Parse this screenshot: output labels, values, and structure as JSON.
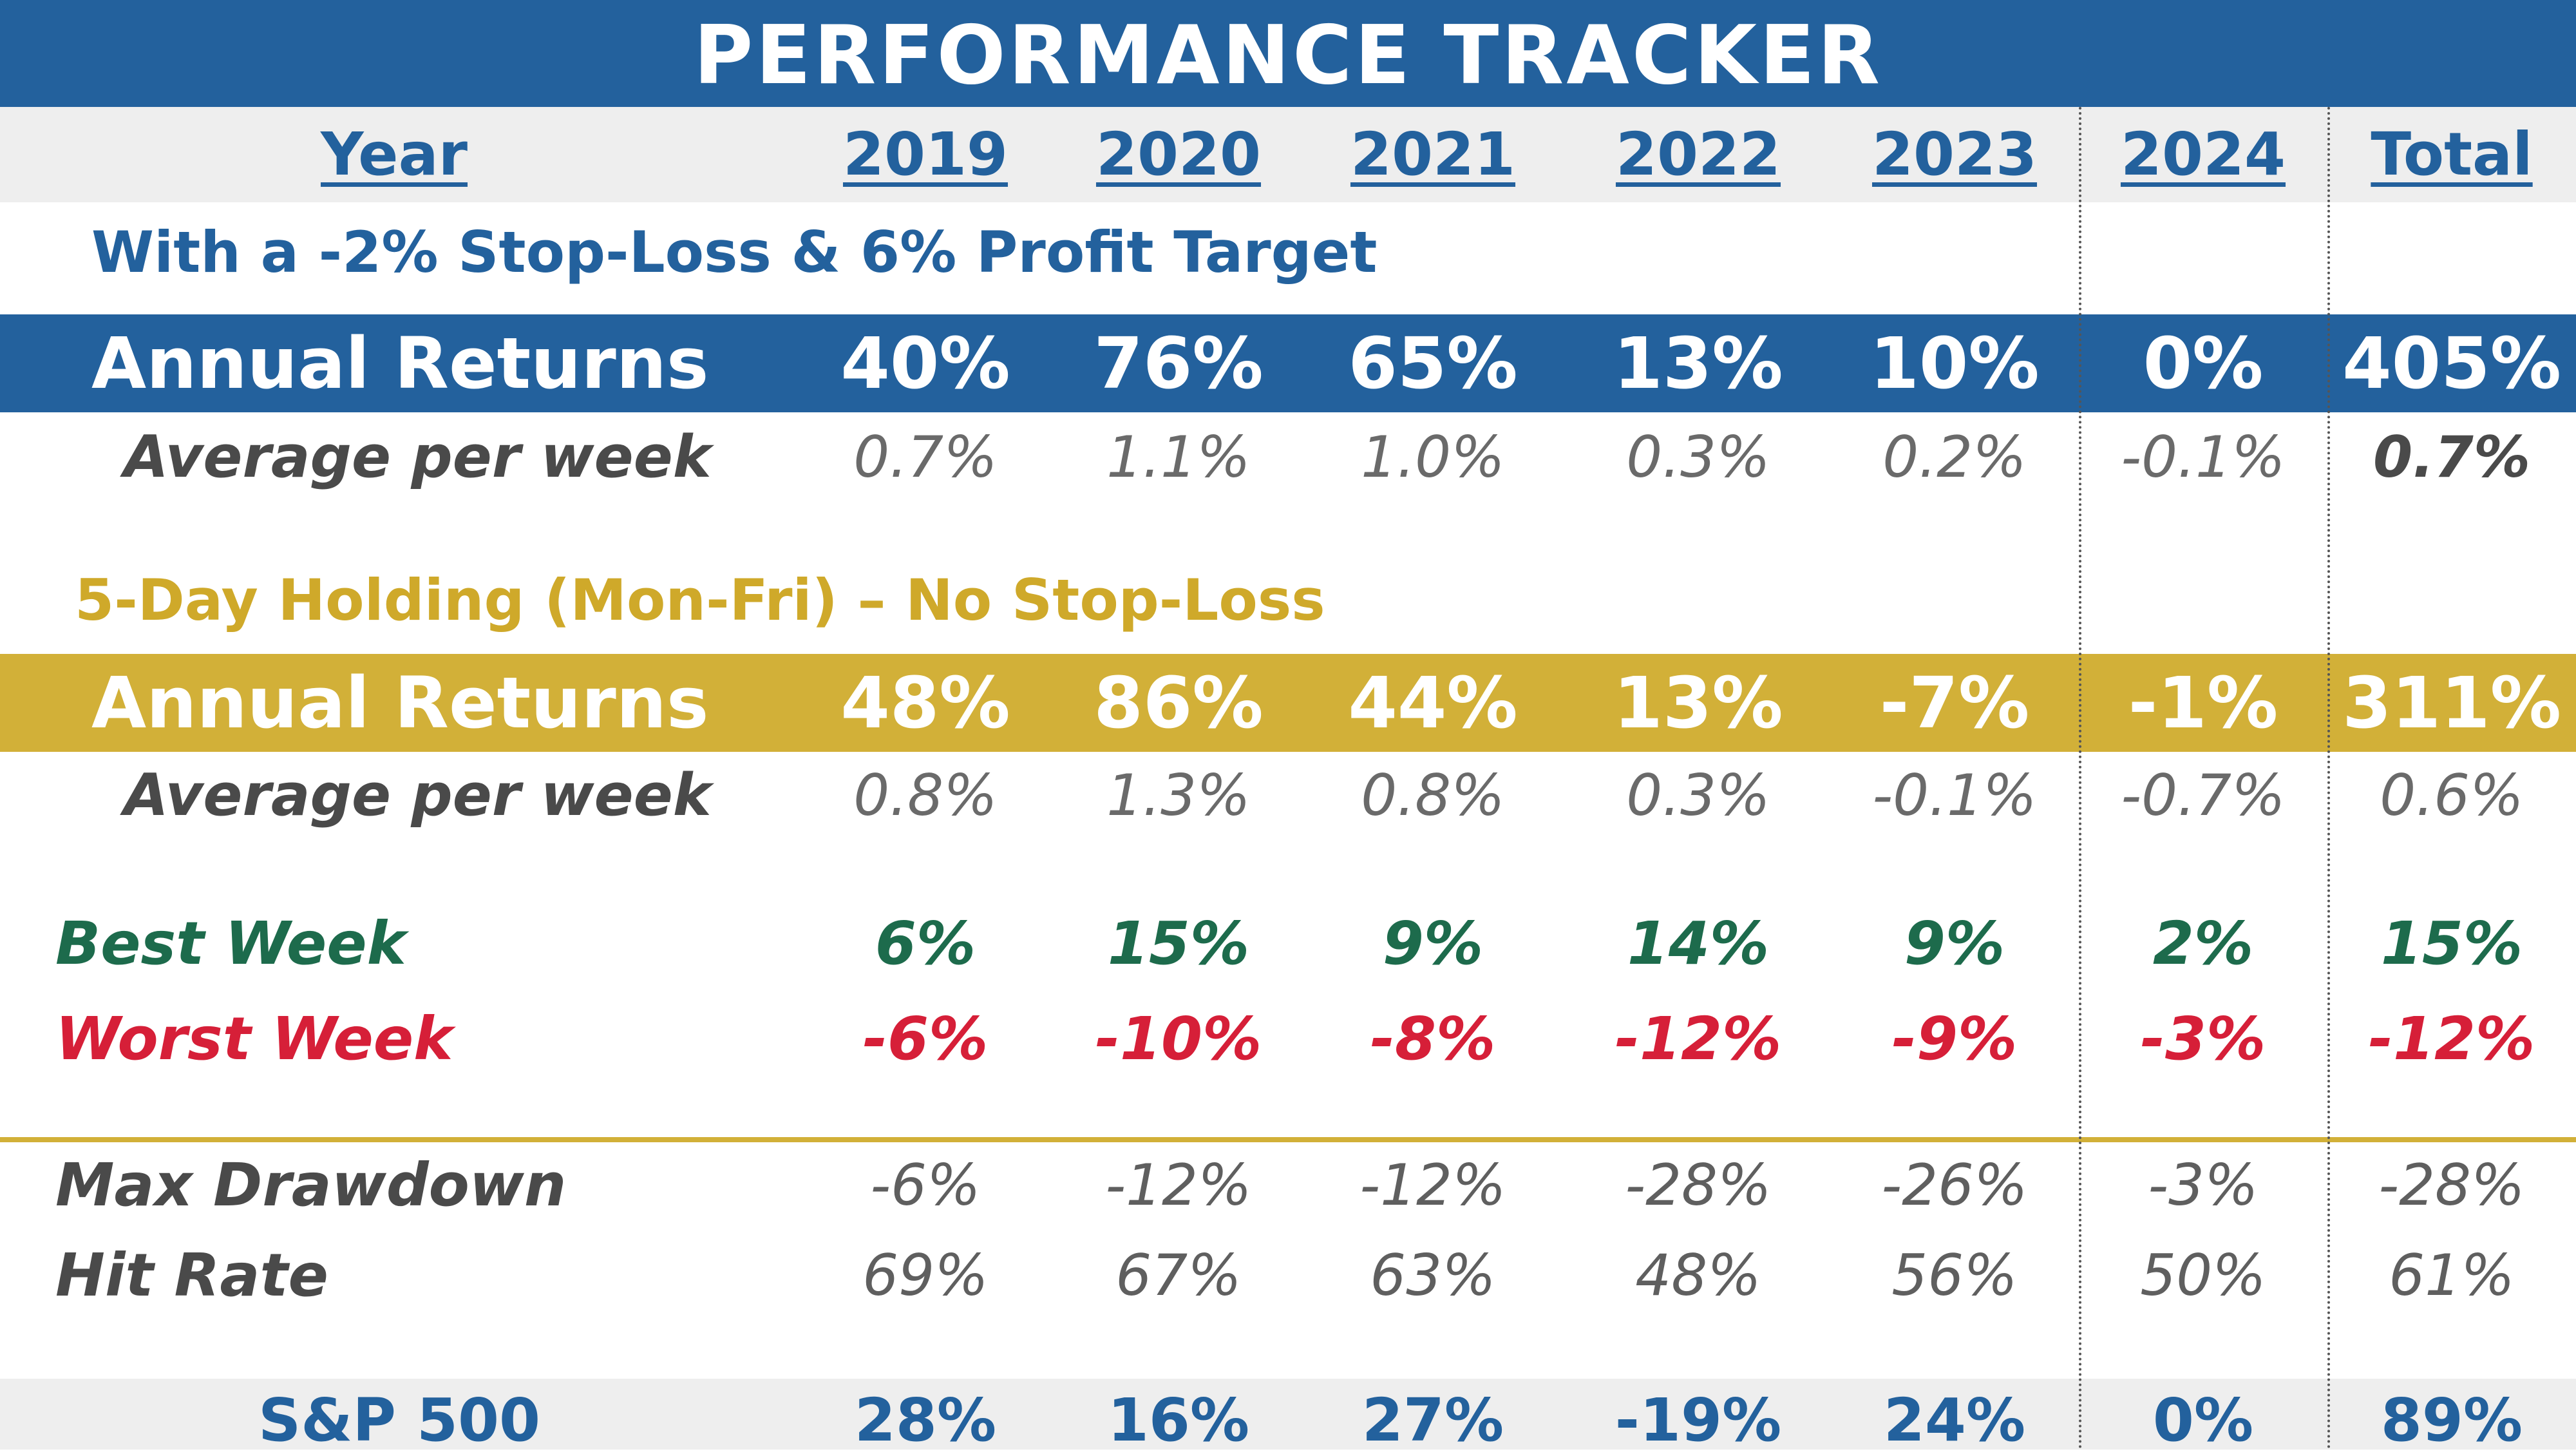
{
  "title": "PERFORMANCE TRACKER",
  "header": {
    "label": "Year",
    "columns": [
      "2019",
      "2020",
      "2021",
      "2022",
      "2023",
      "2024",
      "Total"
    ]
  },
  "section_stop_loss": {
    "title": "With a -2% Stop-Loss & 6% Profit Target",
    "annual_label": "Annual Returns",
    "annual_values": [
      "40%",
      "76%",
      "65%",
      "13%",
      "10%",
      "0%",
      "405%"
    ],
    "avg_label": "Average per week",
    "avg_values": [
      "0.7%",
      "1.1%",
      "1.0%",
      "0.3%",
      "0.2%",
      "-0.1%",
      "0.7%"
    ]
  },
  "section_holding": {
    "title": "5-Day Holding (Mon-Fri) – No Stop-Loss",
    "annual_label": "Annual Returns",
    "annual_values": [
      "48%",
      "86%",
      "44%",
      "13%",
      "-7%",
      "-1%",
      "311%"
    ],
    "avg_label": "Average per week",
    "avg_values": [
      "0.8%",
      "1.3%",
      "0.8%",
      "0.3%",
      "-0.1%",
      "-0.7%",
      "0.6%"
    ]
  },
  "best_week": {
    "label": "Best Week",
    "values": [
      "6%",
      "15%",
      "9%",
      "14%",
      "9%",
      "2%",
      "15%"
    ]
  },
  "worst_week": {
    "label": "Worst Week",
    "values": [
      "-6%",
      "-10%",
      "-8%",
      "-12%",
      "-9%",
      "-3%",
      "-12%"
    ]
  },
  "max_drawdown": {
    "label": "Max Drawdown",
    "values": [
      "-6%",
      "-12%",
      "-12%",
      "-28%",
      "-26%",
      "-3%",
      "-28%"
    ]
  },
  "hit_rate": {
    "label": "Hit Rate",
    "values": [
      "69%",
      "67%",
      "63%",
      "48%",
      "56%",
      "50%",
      "61%"
    ]
  },
  "sp500": {
    "label": "S&P 500",
    "values": [
      "28%",
      "16%",
      "27%",
      "-19%",
      "24%",
      "0%",
      "89%"
    ]
  },
  "colors": {
    "brand_blue": "#23619d",
    "gold": "#d2b038",
    "best_green": "#1d6b4c",
    "worst_red": "#d61f38",
    "band_gray": "#eeeeee"
  }
}
